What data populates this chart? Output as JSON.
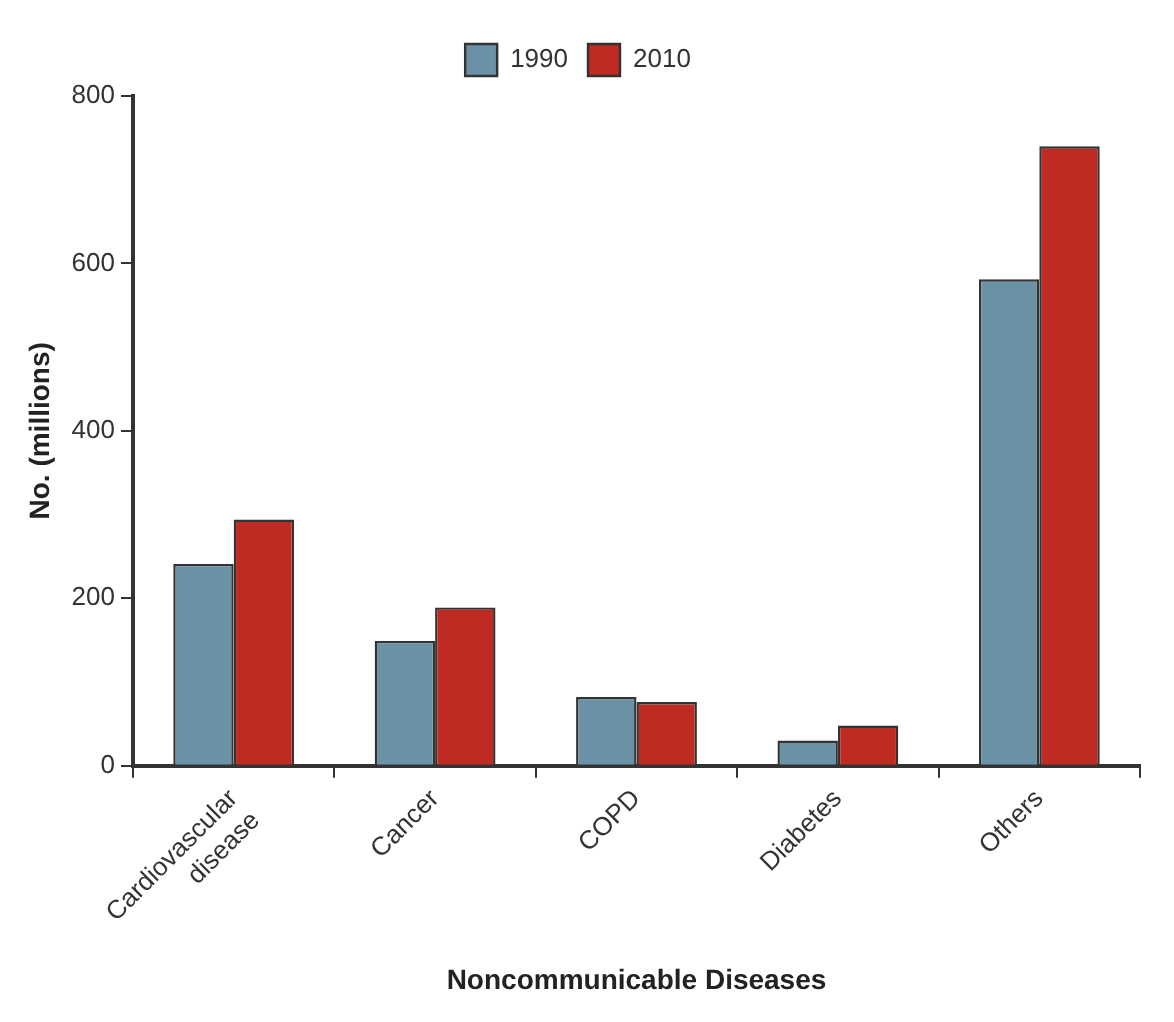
{
  "chart_data": {
    "type": "bar",
    "xlabel": "Noncommunicable Diseases",
    "ylabel": "No. (millions)",
    "categories": [
      "Cardiovascular disease",
      "Cancer",
      "COPD",
      "Diabetes",
      "Others"
    ],
    "series": [
      {
        "name": "1990",
        "color": "#6a91a5",
        "values": [
          241,
          149,
          82,
          30,
          581
        ]
      },
      {
        "name": "2010",
        "color": "#bf2a23",
        "values": [
          294,
          189,
          76,
          48,
          740
        ]
      }
    ],
    "ylim": [
      0,
      800
    ],
    "yticks": [
      0,
      200,
      400,
      600,
      800
    ],
    "grid": false,
    "legend": "top"
  }
}
